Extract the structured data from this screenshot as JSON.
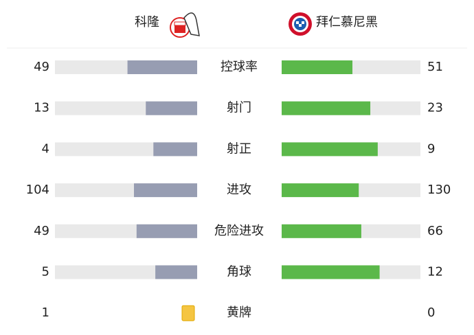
{
  "home": {
    "name": "科隆"
  },
  "away": {
    "name": "拜仁慕尼黑"
  },
  "stats": [
    {
      "label": "控球率",
      "home": 49,
      "away": 51
    },
    {
      "label": "射门",
      "home": 13,
      "away": 23
    },
    {
      "label": "射正",
      "home": 4,
      "away": 9
    },
    {
      "label": "进攻",
      "home": 104,
      "away": 130
    },
    {
      "label": "危险进攻",
      "home": 49,
      "away": 66
    },
    {
      "label": "角球",
      "home": 5,
      "away": 12
    },
    {
      "label": "黄牌",
      "home": 1,
      "away": 0
    }
  ]
}
